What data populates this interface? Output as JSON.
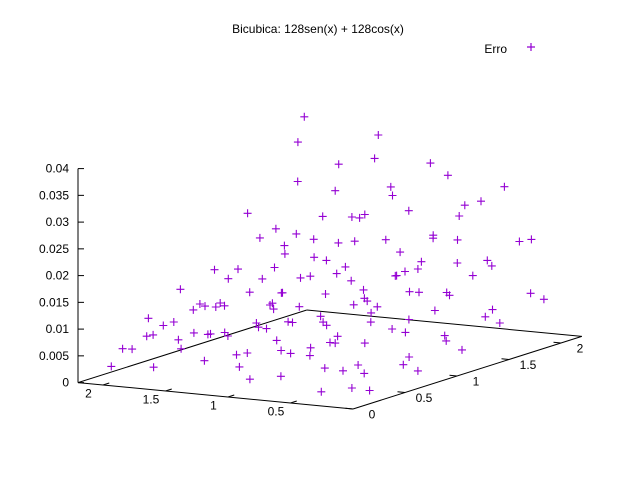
{
  "chart_data": {
    "type": "scatter",
    "title": "Bicubica: 128sen(x) + 128cos(x)",
    "legend_placement": "top-right",
    "series": [
      {
        "name": "Erro",
        "color": "#9400d3",
        "marker": "plus",
        "points": [
          [
            0.05,
            0.05,
            0.0035
          ],
          [
            0.18,
            0.12,
            0.006
          ],
          [
            0.32,
            0.08,
            0.002
          ],
          [
            0.47,
            0.15,
            0.008
          ],
          [
            0.61,
            0.04,
            0.0045
          ],
          [
            0.76,
            0.18,
            0.01
          ],
          [
            0.9,
            0.09,
            0.003
          ],
          [
            1.04,
            0.13,
            0.007
          ],
          [
            1.19,
            0.06,
            0.011
          ],
          [
            1.33,
            0.17,
            0.005
          ],
          [
            1.48,
            0.1,
            0.009
          ],
          [
            1.62,
            0.03,
            0.004
          ],
          [
            1.77,
            0.16,
            0.012
          ],
          [
            1.91,
            0.08,
            0.0065
          ],
          [
            2.05,
            0.14,
            0.0025
          ],
          [
            0.1,
            0.28,
            0.0015
          ],
          [
            0.25,
            0.35,
            0.0055
          ],
          [
            0.4,
            0.31,
            0.0095
          ],
          [
            0.55,
            0.39,
            0.004
          ],
          [
            0.7,
            0.26,
            0.013
          ],
          [
            0.85,
            0.33,
            0.007
          ],
          [
            1.0,
            0.37,
            0.0105
          ],
          [
            1.15,
            0.29,
            0.0035
          ],
          [
            1.3,
            0.36,
            0.0085
          ],
          [
            1.45,
            0.32,
            0.014
          ],
          [
            1.6,
            0.27,
            0.006
          ],
          [
            1.75,
            0.38,
            0.01
          ],
          [
            1.9,
            0.3,
            0.0075
          ],
          [
            2.05,
            0.34,
            0.0045
          ],
          [
            0.03,
            0.52,
            0.005
          ],
          [
            0.17,
            0.58,
            0.011
          ],
          [
            0.31,
            0.48,
            0.003
          ],
          [
            0.46,
            0.56,
            0.015
          ],
          [
            0.6,
            0.5,
            0.008
          ],
          [
            0.75,
            0.59,
            0.012
          ],
          [
            0.89,
            0.47,
            0.0055
          ],
          [
            1.03,
            0.55,
            0.016
          ],
          [
            1.18,
            0.51,
            0.0095
          ],
          [
            1.32,
            0.57,
            0.004
          ],
          [
            1.47,
            0.49,
            0.0135
          ],
          [
            1.61,
            0.54,
            0.007
          ],
          [
            1.76,
            0.58,
            0.011
          ],
          [
            1.9,
            0.46,
            0.0085
          ],
          [
            2.04,
            0.53,
            0.006
          ],
          [
            0.08,
            0.72,
            0.0025
          ],
          [
            0.23,
            0.78,
            0.009
          ],
          [
            0.38,
            0.69,
            0.014
          ],
          [
            0.53,
            0.75,
            0.0065
          ],
          [
            0.68,
            0.8,
            0.0175
          ],
          [
            0.83,
            0.71,
            0.01
          ],
          [
            0.98,
            0.77,
            0.0045
          ],
          [
            1.13,
            0.68,
            0.015
          ],
          [
            1.28,
            0.74,
            0.012
          ],
          [
            1.43,
            0.79,
            0.008
          ],
          [
            1.58,
            0.7,
            0.0165
          ],
          [
            1.73,
            0.76,
            0.0105
          ],
          [
            1.88,
            0.73,
            0.0055
          ],
          [
            2.03,
            0.78,
            0.013
          ],
          [
            0.02,
            0.92,
            0.007
          ],
          [
            0.16,
            0.98,
            0.012
          ],
          [
            0.3,
            0.9,
            0.0035
          ],
          [
            0.45,
            0.96,
            0.018
          ],
          [
            0.59,
            0.88,
            0.0095
          ],
          [
            0.74,
            0.99,
            0.0145
          ],
          [
            0.88,
            0.91,
            0.006
          ],
          [
            1.02,
            0.97,
            0.0195
          ],
          [
            1.17,
            0.89,
            0.011
          ],
          [
            1.31,
            0.95,
            0.0075
          ],
          [
            1.46,
            1.0,
            0.017
          ],
          [
            1.6,
            0.93,
            0.0125
          ],
          [
            1.75,
            0.87,
            0.005
          ],
          [
            1.89,
            0.94,
            0.016
          ],
          [
            2.04,
            0.98,
            0.009
          ],
          [
            0.06,
            1.12,
            0.004
          ],
          [
            0.21,
            1.18,
            0.0135
          ],
          [
            0.36,
            1.09,
            0.02
          ],
          [
            0.51,
            1.15,
            0.0085
          ],
          [
            0.66,
            1.2,
            0.016
          ],
          [
            0.81,
            1.11,
            0.0115
          ],
          [
            0.96,
            1.17,
            0.022
          ],
          [
            1.11,
            1.08,
            0.0065
          ],
          [
            1.26,
            1.14,
            0.0185
          ],
          [
            1.41,
            1.19,
            0.014
          ],
          [
            1.56,
            1.1,
            0.0095
          ],
          [
            1.71,
            1.16,
            0.021
          ],
          [
            1.86,
            1.13,
            0.015
          ],
          [
            2.01,
            1.18,
            0.0075
          ],
          [
            0.04,
            1.32,
            0.009
          ],
          [
            0.19,
            1.38,
            0.016
          ],
          [
            0.34,
            1.29,
            0.005
          ],
          [
            0.49,
            1.36,
            0.023
          ],
          [
            0.63,
            1.3,
            0.0125
          ],
          [
            0.78,
            1.39,
            0.019
          ],
          [
            0.92,
            1.28,
            0.008
          ],
          [
            1.07,
            1.35,
            0.025
          ],
          [
            1.22,
            1.31,
            0.0145
          ],
          [
            1.36,
            1.37,
            0.01
          ],
          [
            1.51,
            1.27,
            0.0215
          ],
          [
            1.66,
            1.34,
            0.017
          ],
          [
            1.8,
            1.4,
            0.006
          ],
          [
            1.95,
            1.33,
            0.024
          ],
          [
            0.09,
            1.52,
            0.0065
          ],
          [
            0.24,
            1.58,
            0.0175
          ],
          [
            0.39,
            1.49,
            0.026
          ],
          [
            0.54,
            1.55,
            0.011
          ],
          [
            0.69,
            1.6,
            0.0205
          ],
          [
            0.84,
            1.51,
            0.0145
          ],
          [
            0.99,
            1.57,
            0.028
          ],
          [
            1.14,
            1.48,
            0.009
          ],
          [
            1.29,
            1.54,
            0.0235
          ],
          [
            1.44,
            1.59,
            0.018
          ],
          [
            1.59,
            1.5,
            0.012
          ],
          [
            1.74,
            1.56,
            0.029
          ],
          [
            1.89,
            1.53,
            0.02
          ],
          [
            2.04,
            1.58,
            0.01
          ],
          [
            0.01,
            1.72,
            0.011
          ],
          [
            0.15,
            1.78,
            0.02
          ],
          [
            0.29,
            1.69,
            0.0075
          ],
          [
            0.44,
            1.76,
            0.027
          ],
          [
            0.58,
            1.7,
            0.0155
          ],
          [
            0.73,
            1.79,
            0.031
          ],
          [
            0.87,
            1.68,
            0.0095
          ],
          [
            1.01,
            1.75,
            0.024
          ],
          [
            1.16,
            1.71,
            0.0185
          ],
          [
            1.3,
            1.77,
            0.033
          ],
          [
            1.45,
            1.67,
            0.013
          ],
          [
            1.59,
            1.74,
            0.0265
          ],
          [
            1.74,
            1.8,
            0.021
          ],
          [
            1.88,
            1.73,
            0.035
          ],
          [
            2.03,
            1.78,
            0.015
          ],
          [
            0.07,
            1.92,
            0.0085
          ],
          [
            0.22,
            1.98,
            0.019
          ],
          [
            0.37,
            1.9,
            0.029
          ],
          [
            0.52,
            1.96,
            0.0135
          ],
          [
            0.67,
            1.88,
            0.025
          ],
          [
            0.82,
            1.99,
            0.0175
          ],
          [
            0.97,
            1.91,
            0.032
          ],
          [
            1.12,
            1.97,
            0.0115
          ],
          [
            1.27,
            1.89,
            0.027
          ],
          [
            1.42,
            1.95,
            0.036
          ],
          [
            1.57,
            2.0,
            0.0205
          ],
          [
            1.72,
            1.93,
            0.03
          ],
          [
            1.87,
            1.87,
            0.016
          ],
          [
            2.02,
            1.96,
            0.038
          ]
        ]
      }
    ],
    "axes": {
      "x": {
        "range": [
          0,
          2.2
        ],
        "ticks": [
          {
            "value": 0.5,
            "label": "0.5"
          },
          {
            "value": 1,
            "label": "1"
          },
          {
            "value": 1.5,
            "label": "1.5"
          },
          {
            "value": 2,
            "label": "2"
          }
        ]
      },
      "y": {
        "range": [
          0,
          2.2
        ],
        "ticks": [
          {
            "value": 0,
            "label": "0"
          },
          {
            "value": 0.5,
            "label": "0.5"
          },
          {
            "value": 1,
            "label": "1"
          },
          {
            "value": 1.5,
            "label": "1.5"
          },
          {
            "value": 2,
            "label": "2"
          }
        ]
      },
      "z": {
        "range": [
          0,
          0.04
        ],
        "ticks": [
          {
            "value": 0,
            "label": "0"
          },
          {
            "value": 0.005,
            "label": "0.005"
          },
          {
            "value": 0.01,
            "label": "0.01"
          },
          {
            "value": 0.015,
            "label": "0.015"
          },
          {
            "value": 0.02,
            "label": "0.02"
          },
          {
            "value": 0.025,
            "label": "0.025"
          },
          {
            "value": 0.03,
            "label": "0.03"
          },
          {
            "value": 0.035,
            "label": "0.035"
          },
          {
            "value": 0.04,
            "label": "0.04"
          }
        ]
      }
    }
  }
}
